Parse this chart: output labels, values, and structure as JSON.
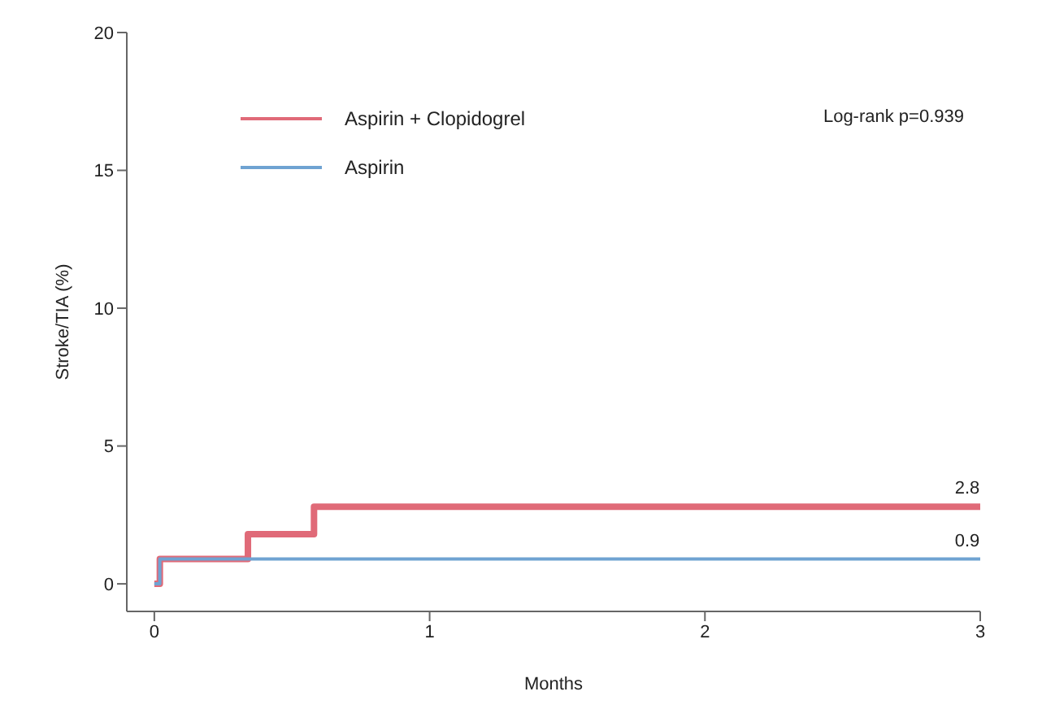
{
  "chart_data": {
    "type": "step",
    "xlabel": "Months",
    "ylabel": "Stroke/TIA (%)",
    "xlim": [
      -0.1,
      3
    ],
    "xticks": [
      0,
      1,
      2,
      3
    ],
    "ylim": [
      -1,
      20
    ],
    "yticks": [
      0,
      5,
      10,
      15,
      20
    ],
    "legend": "top left",
    "grid": false,
    "series": [
      {
        "name": "Aspirin + Clopidogrel",
        "color": "#e06a78",
        "x": [
          0,
          0.02,
          0.34,
          0.58,
          3
        ],
        "values": [
          0,
          0.9,
          1.8,
          2.8,
          2.8
        ]
      },
      {
        "name": "Aspirin",
        "color": "#6fa3d2",
        "x": [
          0,
          0.02,
          3
        ],
        "values": [
          0,
          0.9,
          0.9
        ]
      }
    ],
    "annotations": [
      "Log-rank p=0.939",
      {
        "text": "2.8",
        "x": 3,
        "y": 2.8
      },
      {
        "text": "0.9",
        "x": 3,
        "y": 0.9
      }
    ]
  }
}
